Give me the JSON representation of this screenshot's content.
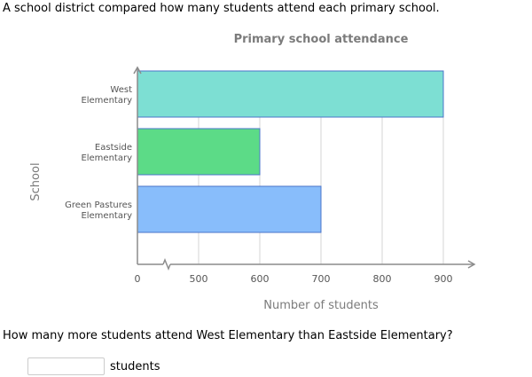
{
  "intro_text": "A school district compared how many students attend each primary school.",
  "question_text": "How many more students attend West Elementary than Eastside Elementary?",
  "answer": {
    "value": "",
    "placeholder": "",
    "unit": "students"
  },
  "chart_data": {
    "type": "bar",
    "orientation": "horizontal",
    "title": "Primary school attendance",
    "xlabel": "Number of students",
    "ylabel": "School",
    "categories": [
      [
        "West",
        "Elementary"
      ],
      [
        "Eastside",
        "Elementary"
      ],
      [
        "Green Pastures",
        "Elementary"
      ]
    ],
    "values": [
      900,
      600,
      700
    ],
    "colors": [
      "#7ddfd3",
      "#5cdb87",
      "#88bdfb"
    ],
    "xticks": [
      0,
      500,
      600,
      700,
      800,
      900
    ],
    "xlim": [
      400,
      1000
    ],
    "axis_break": true,
    "grid": true
  }
}
